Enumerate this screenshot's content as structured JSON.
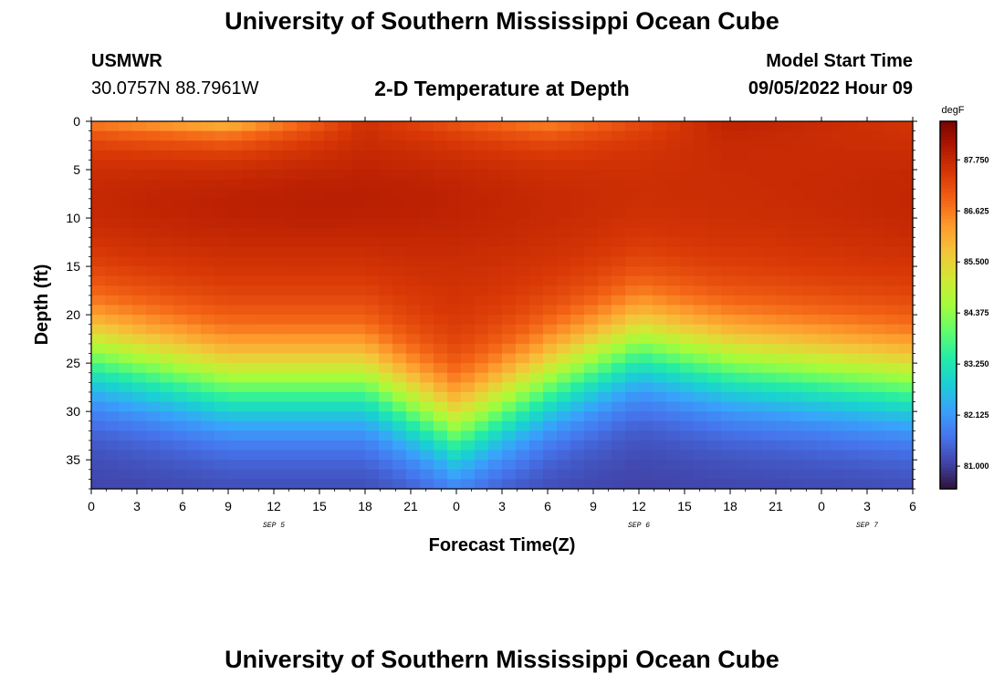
{
  "header": {
    "title": "University of Southern Mississippi Ocean Cube",
    "station_id": "USMWR",
    "station_coords": "30.0757N  88.7961W",
    "subtitle": "2-D Temperature at Depth",
    "model_start_label": "Model Start Time",
    "model_start_value": "09/05/2022 Hour 09"
  },
  "footer": {
    "title": "University of Southern Mississippi Ocean Cube"
  },
  "chart_data": {
    "type": "heatmap",
    "title": "2-D Temperature at Depth",
    "xlabel": "Forecast Time(Z)",
    "ylabel": "Depth (ft)",
    "x_tick_labels": [
      "0",
      "3",
      "6",
      "9",
      "12",
      "15",
      "18",
      "21",
      "0",
      "3",
      "6",
      "9",
      "12",
      "15",
      "18",
      "21",
      "0",
      "3",
      "6"
    ],
    "x_range_hours": [
      0,
      54
    ],
    "date_labels": [
      {
        "text": "SEP 5",
        "hour": 12
      },
      {
        "text": "SEP 6",
        "hour": 36
      },
      {
        "text": "SEP 7",
        "hour": 51
      }
    ],
    "y_ticks": [
      0,
      5,
      10,
      15,
      20,
      25,
      30,
      35
    ],
    "y_range": [
      0,
      38
    ],
    "colorbar": {
      "unit": "degF",
      "min": 80.5,
      "max": 88.6,
      "tick_labels": [
        "87.750",
        "86.625",
        "85.500",
        "84.375",
        "83.250",
        "82.125",
        "81.000"
      ],
      "tick_values": [
        87.75,
        86.625,
        85.5,
        84.375,
        83.25,
        82.125,
        81.0
      ]
    },
    "thermocline_depth_profile": {
      "hours": [
        0,
        9,
        12,
        18,
        24,
        30,
        36,
        42,
        48,
        54
      ],
      "depth_ft": [
        19,
        22,
        22,
        22,
        27,
        22,
        18,
        20,
        21,
        22
      ]
    },
    "surface_temp_degF": [
      {
        "hours": 0,
        "value": 86.5
      },
      {
        "hours": 9,
        "value": 85.7
      },
      {
        "hours": 18,
        "value": 87.6
      },
      {
        "hours": 30,
        "value": 86.4
      },
      {
        "hours": 42,
        "value": 87.9
      },
      {
        "hours": 54,
        "value": 87.5
      }
    ],
    "mixed_layer_temp_degF": 87.6,
    "bottom_temp_degF": 81.0,
    "colormap": [
      "#30123b",
      "#4145ab",
      "#4675ed",
      "#39a2fc",
      "#1bcfd4",
      "#24eca6",
      "#61fc6c",
      "#a4fc3b",
      "#d1e834",
      "#f3c63a",
      "#fe9b2d",
      "#f36315",
      "#d93806",
      "#b11901",
      "#7a0402"
    ]
  }
}
